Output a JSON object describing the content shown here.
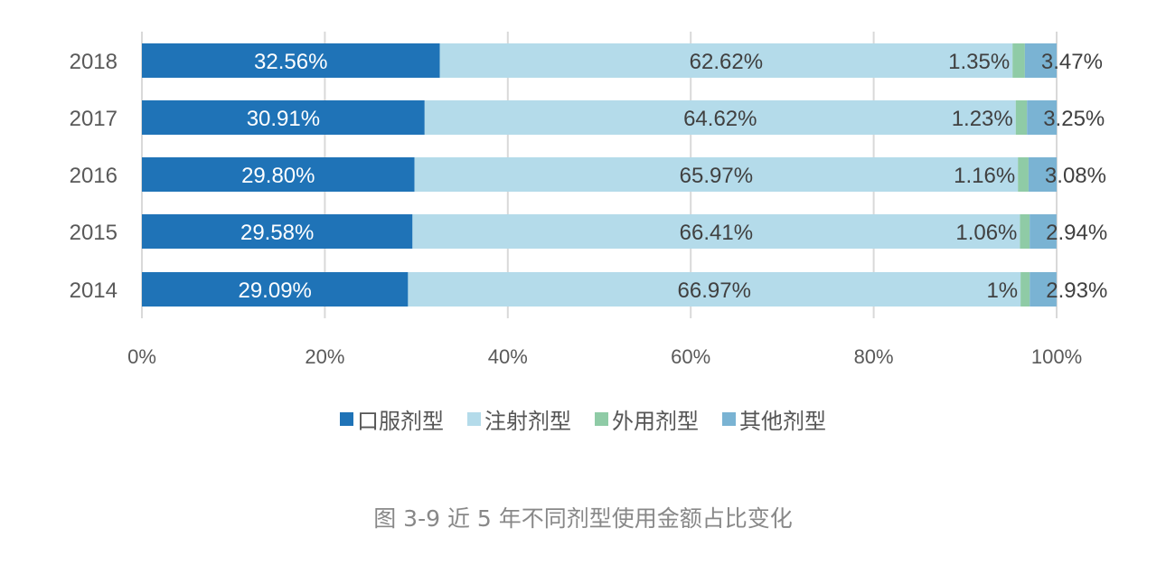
{
  "chart_data": {
    "type": "bar",
    "orientation": "horizontal",
    "stacked": "percent",
    "categories": [
      "2018",
      "2017",
      "2016",
      "2015",
      "2014"
    ],
    "series": [
      {
        "name": "口服剂型",
        "color": "#1f73b7",
        "label_color": "#ffffff",
        "values": [
          32.56,
          30.91,
          29.8,
          29.58,
          29.09
        ],
        "labels": [
          "32.56%",
          "30.91%",
          "29.80%",
          "29.58%",
          "29.09%"
        ]
      },
      {
        "name": "注射剂型",
        "color": "#b4dbea",
        "label_color": "#404040",
        "values": [
          62.62,
          64.62,
          65.97,
          66.41,
          66.97
        ],
        "labels": [
          "62.62%",
          "64.62%",
          "65.97%",
          "66.41%",
          "66.97%"
        ]
      },
      {
        "name": "外用剂型",
        "color": "#8fcba6",
        "label_color": "#404040",
        "values": [
          1.35,
          1.23,
          1.16,
          1.06,
          1.0
        ],
        "labels": [
          "1.35%",
          "1.23%",
          "1.16%",
          "1.06%",
          "1%"
        ]
      },
      {
        "name": "其他剂型",
        "color": "#7ab3d3",
        "label_color": "#404040",
        "values": [
          3.47,
          3.25,
          3.08,
          2.94,
          2.93
        ],
        "labels": [
          "3.47%",
          "3.25%",
          "3.08%",
          "2.94%",
          "2.93%"
        ]
      }
    ],
    "xticks": [
      "0%",
      "20%",
      "40%",
      "60%",
      "80%",
      "100%"
    ],
    "xlim": [
      0,
      100
    ],
    "grid": true,
    "legend_position": "bottom",
    "title": "图 3-9  近 5 年不同剂型使用金额占比变化",
    "xlabel": "",
    "ylabel": ""
  }
}
